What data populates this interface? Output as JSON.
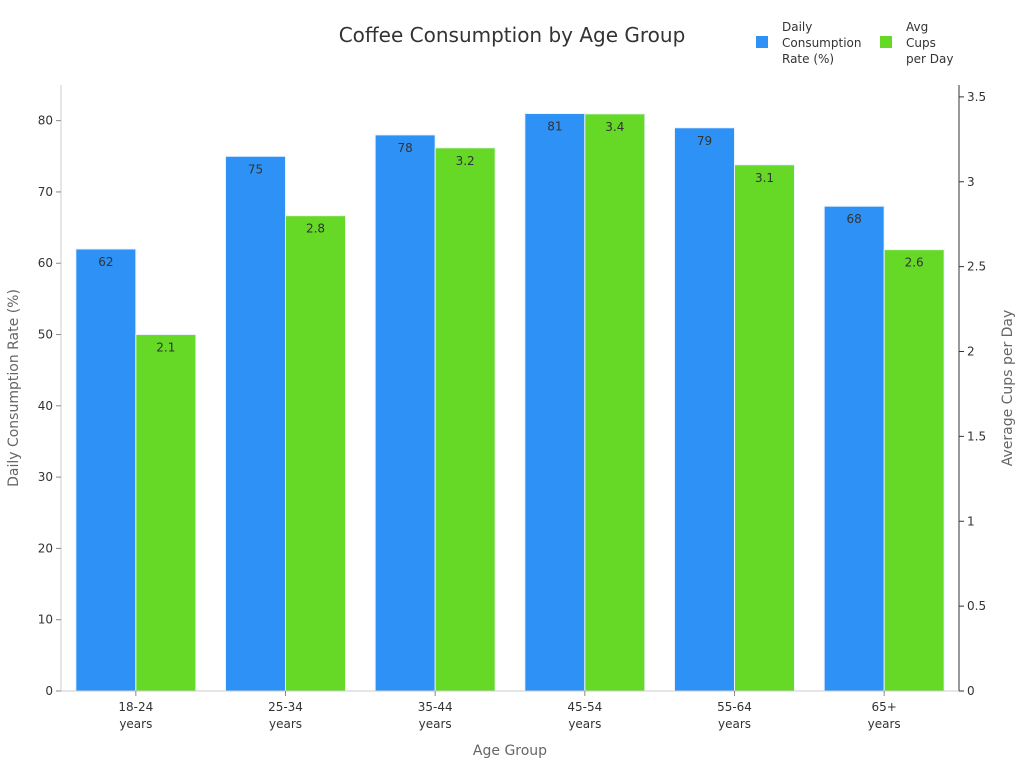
{
  "chart_data": {
    "type": "bar",
    "title": "Coffee Consumption by Age Group",
    "xlabel": "Age Group",
    "ylabel": "Daily Consumption Rate (%)",
    "ylabel_right": "Average Cups per Day",
    "categories": [
      [
        "18-24",
        "years"
      ],
      [
        "25-34",
        "years"
      ],
      [
        "35-44",
        "years"
      ],
      [
        "45-54",
        "years"
      ],
      [
        "55-64",
        "years"
      ],
      [
        "65+",
        "years"
      ]
    ],
    "series": [
      {
        "name": [
          "Daily",
          "Consumption",
          "Rate (%)"
        ],
        "axis": "left",
        "color": "#2e91f6",
        "values": [
          62,
          75,
          78,
          81,
          79,
          68
        ],
        "labels": [
          "62",
          "75",
          "78",
          "81",
          "79",
          "68"
        ]
      },
      {
        "name": [
          "Avg",
          "Cups",
          "per Day"
        ],
        "axis": "right",
        "color": "#66d926",
        "values": [
          2.1,
          2.8,
          3.2,
          3.4,
          3.1,
          2.6
        ],
        "labels": [
          "2.1",
          "2.8",
          "3.2",
          "3.4",
          "3.1",
          "2.6"
        ]
      }
    ],
    "ylim": [
      0,
      85
    ],
    "ylim_right": [
      0,
      3.57
    ],
    "yticks": [
      "0",
      "10",
      "20",
      "30",
      "40",
      "50",
      "60",
      "70",
      "80"
    ],
    "yticks_right": [
      "0",
      "0.5",
      "1",
      "1.5",
      "2",
      "2.5",
      "3",
      "3.5"
    ],
    "grid": false,
    "legend_position": "top-right"
  }
}
